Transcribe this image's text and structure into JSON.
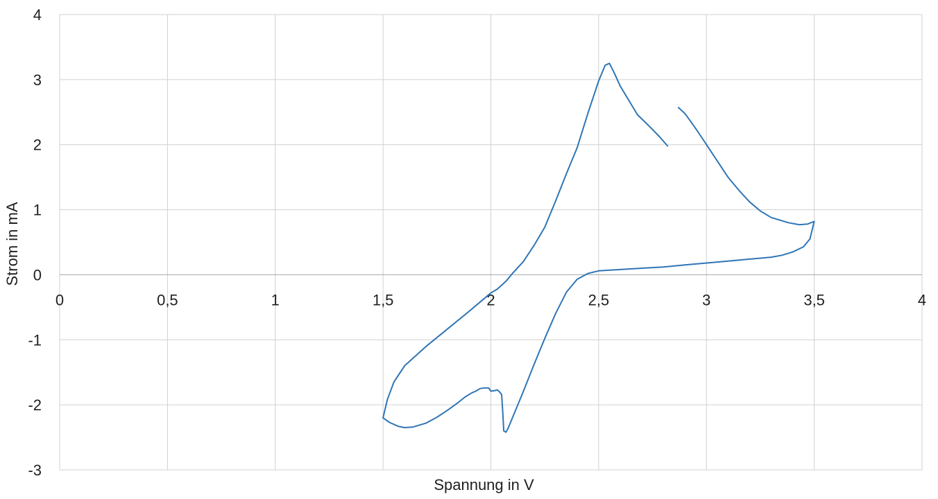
{
  "chart_data": {
    "type": "line",
    "title": "",
    "xlabel": "Spannung in V",
    "ylabel": "Strom in mA",
    "xlim": [
      0,
      4
    ],
    "ylim": [
      -3,
      4
    ],
    "x_ticks": [
      0,
      0.5,
      1,
      1.5,
      2,
      2.5,
      3,
      3.5,
      4
    ],
    "x_tick_labels": [
      "0",
      "0,5",
      "1",
      "1,5",
      "2",
      "2,5",
      "3",
      "3,5",
      "4"
    ],
    "y_ticks": [
      -3,
      -2,
      -1,
      0,
      1,
      2,
      3,
      4
    ],
    "y_tick_labels": [
      "-3",
      "-2",
      "-1",
      "0",
      "1",
      "2",
      "3",
      "4"
    ],
    "grid": true,
    "legend": "none",
    "series_color": "#2e75b6",
    "series": [
      {
        "segments": [
          [
            [
              1.5,
              -2.2
            ],
            [
              1.53,
              -2.27
            ],
            [
              1.57,
              -2.33
            ],
            [
              1.6,
              -2.35
            ],
            [
              1.64,
              -2.34
            ],
            [
              1.7,
              -2.28
            ],
            [
              1.75,
              -2.19
            ],
            [
              1.8,
              -2.08
            ],
            [
              1.85,
              -1.96
            ],
            [
              1.88,
              -1.88
            ],
            [
              1.91,
              -1.82
            ],
            [
              1.93,
              -1.79
            ],
            [
              1.95,
              -1.75
            ],
            [
              1.97,
              -1.74
            ],
            [
              1.99,
              -1.74
            ],
            [
              2.0,
              -1.79
            ],
            [
              2.02,
              -1.78
            ],
            [
              2.03,
              -1.77
            ],
            [
              2.04,
              -1.8
            ],
            [
              2.05,
              -1.84
            ],
            [
              2.055,
              -2.1
            ],
            [
              2.06,
              -2.4
            ],
            [
              2.07,
              -2.42
            ],
            [
              2.08,
              -2.36
            ],
            [
              2.1,
              -2.2
            ],
            [
              2.15,
              -1.8
            ],
            [
              2.2,
              -1.38
            ],
            [
              2.25,
              -0.98
            ],
            [
              2.3,
              -0.6
            ],
            [
              2.35,
              -0.27
            ],
            [
              2.4,
              -0.07
            ],
            [
              2.45,
              0.02
            ],
            [
              2.5,
              0.06
            ],
            [
              2.6,
              0.08
            ],
            [
              2.7,
              0.1
            ],
            [
              2.8,
              0.12
            ],
            [
              2.9,
              0.15
            ],
            [
              3.0,
              0.18
            ],
            [
              3.1,
              0.21
            ],
            [
              3.2,
              0.24
            ],
            [
              3.3,
              0.27
            ],
            [
              3.35,
              0.3
            ],
            [
              3.4,
              0.35
            ],
            [
              3.45,
              0.43
            ],
            [
              3.48,
              0.55
            ],
            [
              3.5,
              0.82
            ],
            [
              3.47,
              0.78
            ],
            [
              3.43,
              0.77
            ],
            [
              3.38,
              0.8
            ],
            [
              3.3,
              0.88
            ],
            [
              3.25,
              0.98
            ],
            [
              3.2,
              1.12
            ],
            [
              3.15,
              1.3
            ],
            [
              3.1,
              1.5
            ],
            [
              3.05,
              1.75
            ],
            [
              3.0,
              2.0
            ],
            [
              2.95,
              2.25
            ],
            [
              2.9,
              2.48
            ],
            [
              2.87,
              2.57
            ]
          ],
          [
            [
              2.82,
              1.98
            ],
            [
              2.78,
              2.13
            ],
            [
              2.73,
              2.3
            ],
            [
              2.68,
              2.46
            ],
            [
              2.64,
              2.68
            ],
            [
              2.6,
              2.9
            ],
            [
              2.57,
              3.12
            ],
            [
              2.55,
              3.25
            ],
            [
              2.53,
              3.22
            ],
            [
              2.5,
              2.98
            ],
            [
              2.45,
              2.48
            ],
            [
              2.4,
              1.95
            ],
            [
              2.35,
              1.55
            ],
            [
              2.3,
              1.13
            ],
            [
              2.25,
              0.73
            ],
            [
              2.2,
              0.45
            ],
            [
              2.15,
              0.2
            ],
            [
              2.1,
              0.02
            ],
            [
              2.07,
              -0.1
            ],
            [
              2.03,
              -0.22
            ],
            [
              2.0,
              -0.28
            ],
            [
              1.95,
              -0.42
            ],
            [
              1.9,
              -0.56
            ],
            [
              1.8,
              -0.83
            ],
            [
              1.7,
              -1.1
            ],
            [
              1.6,
              -1.4
            ],
            [
              1.55,
              -1.65
            ],
            [
              1.52,
              -1.92
            ],
            [
              1.5,
              -2.2
            ]
          ]
        ]
      }
    ]
  }
}
